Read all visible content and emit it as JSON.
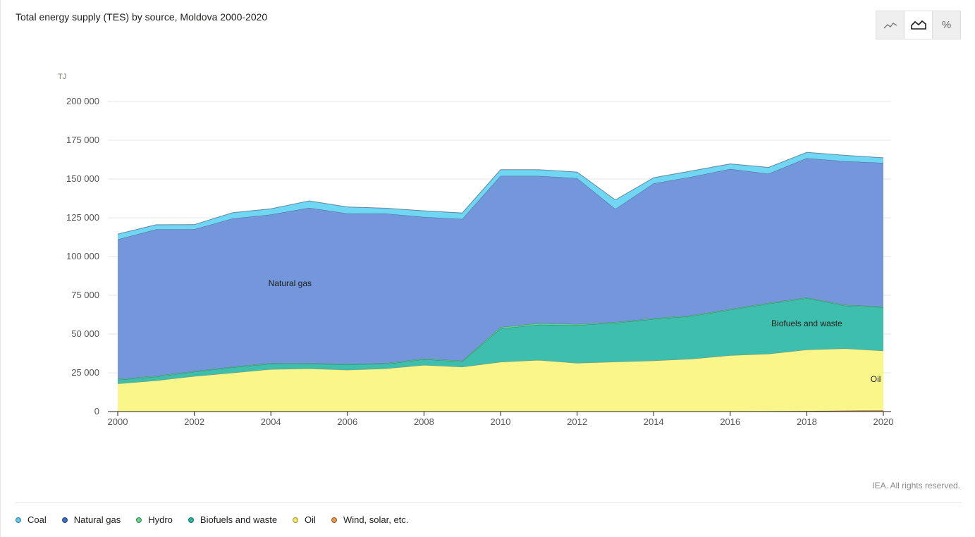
{
  "title": "Total energy supply (TES) by source, Moldova 2000-2020",
  "toggle": {
    "buttons": [
      {
        "name": "line-view-button",
        "icon": "line-chart-icon",
        "active": false
      },
      {
        "name": "area-view-button",
        "icon": "area-chart-icon",
        "active": true
      },
      {
        "name": "percent-view-button",
        "icon": "percent-icon",
        "symbol": "%",
        "active": false
      }
    ]
  },
  "credit": "IEA. All rights reserved.",
  "legend": [
    {
      "label": "Coal",
      "color": "#5ec8e6"
    },
    {
      "label": "Natural gas",
      "color": "#3a6fc4"
    },
    {
      "label": "Hydro",
      "color": "#5fd38d"
    },
    {
      "label": "Biofuels and waste",
      "color": "#2bb39e"
    },
    {
      "label": "Oil",
      "color": "#f5e663"
    },
    {
      "label": "Wind, solar, etc.",
      "color": "#e8964a"
    }
  ],
  "chart_data": {
    "type": "area",
    "stacked": true,
    "unit": "TJ",
    "x": [
      2000,
      2001,
      2002,
      2003,
      2004,
      2005,
      2006,
      2007,
      2008,
      2009,
      2010,
      2011,
      2012,
      2013,
      2014,
      2015,
      2016,
      2017,
      2018,
      2019,
      2020
    ],
    "x_ticks": [
      "2000",
      "2002",
      "2004",
      "2006",
      "2008",
      "2010",
      "2012",
      "2014",
      "2016",
      "2018",
      "2020"
    ],
    "y_ticks": [
      "0",
      "25 000",
      "50 000",
      "75 000",
      "100 000",
      "125 000",
      "150 000",
      "175 000",
      "200 000"
    ],
    "ylim": [
      0,
      200000
    ],
    "series": [
      {
        "name": "Wind, solar, etc.",
        "color": "#e8964a",
        "values": [
          0,
          0,
          0,
          0,
          0,
          0,
          0,
          0,
          0,
          0,
          0,
          0,
          0,
          100,
          150,
          200,
          250,
          300,
          400,
          600,
          800
        ]
      },
      {
        "name": "Oil",
        "color": "#fbf68a",
        "values": [
          18000,
          20000,
          22800,
          25000,
          27300,
          27700,
          26900,
          27700,
          30000,
          28800,
          32000,
          33200,
          31300,
          32000,
          32700,
          33800,
          36000,
          36900,
          39500,
          40100,
          38400
        ]
      },
      {
        "name": "Biofuels and waste",
        "color": "#3ebfae",
        "values": [
          2500,
          2500,
          2800,
          3500,
          3500,
          3000,
          3500,
          3000,
          3700,
          3500,
          21500,
          22800,
          24400,
          25100,
          26800,
          27600,
          29400,
          32400,
          33200,
          27600,
          28100
        ]
      },
      {
        "name": "Hydro",
        "color": "#5fd38d",
        "values": [
          500,
          500,
          500,
          500,
          500,
          500,
          500,
          500,
          500,
          500,
          1000,
          1000,
          800,
          500,
          500,
          500,
          500,
          500,
          500,
          500,
          500
        ]
      },
      {
        "name": "Natural gas",
        "color": "#7497dc",
        "values": [
          90000,
          94500,
          91500,
          95500,
          95800,
          100200,
          96900,
          96500,
          91300,
          91400,
          97500,
          95000,
          94000,
          73000,
          87000,
          89400,
          90300,
          83300,
          89800,
          92700,
          92600
        ]
      },
      {
        "name": "Coal",
        "color": "#6fd6f3",
        "values": [
          3500,
          3000,
          3000,
          3800,
          3700,
          4500,
          4200,
          3500,
          4000,
          3900,
          4000,
          4000,
          4000,
          5800,
          3700,
          3800,
          3300,
          4100,
          3800,
          3800,
          3300
        ]
      }
    ],
    "area_labels": [
      {
        "series": "Natural gas",
        "text": "Natural gas",
        "x": 2004.5,
        "y": 81000
      },
      {
        "series": "Biofuels and waste",
        "text": "Biofuels and waste",
        "x": 2018,
        "y": 55000
      },
      {
        "series": "Oil",
        "text": "Oil",
        "x": 2019.8,
        "y": 19000
      }
    ]
  }
}
